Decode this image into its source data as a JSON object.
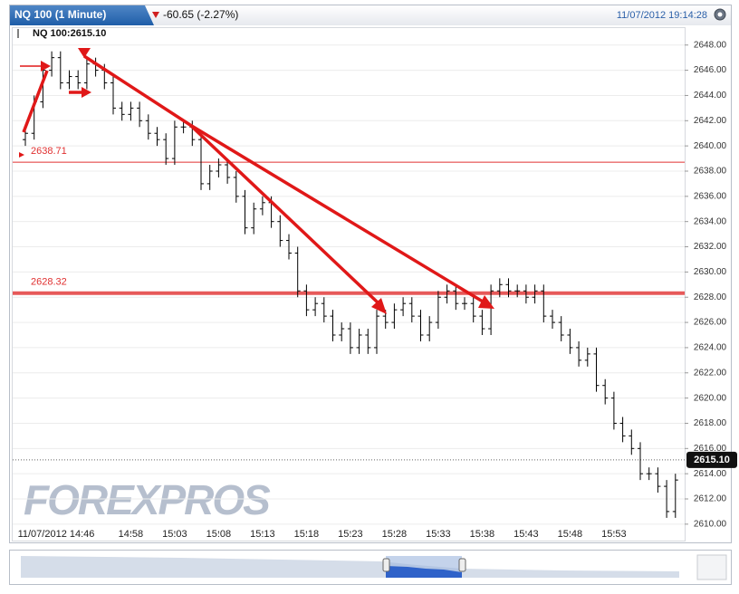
{
  "chart_data": {
    "type": "ohlc",
    "title": "NQ 100 (1 Minute)",
    "change": "-60.65 (-2.27%)",
    "timestamp": "11/07/2012 19:14:28",
    "quote_label": "NQ 100:2615.10",
    "watermark": "FOREXPROS",
    "color": "#000000",
    "categories": [
      "11/07/2012 14:46",
      null,
      null,
      null,
      null,
      null,
      null,
      null,
      null,
      null,
      null,
      null,
      "14:58",
      null,
      null,
      null,
      null,
      "15:03",
      null,
      null,
      null,
      null,
      "15:08",
      null,
      null,
      null,
      null,
      "15:13",
      null,
      null,
      null,
      null,
      "15:18",
      null,
      null,
      null,
      null,
      "15:23",
      null,
      null,
      null,
      null,
      "15:28",
      null,
      null,
      null,
      null,
      "15:33",
      null,
      null,
      null,
      null,
      "15:38",
      null,
      null,
      null,
      null,
      "15:43",
      null,
      null,
      null,
      null,
      "15:48",
      null,
      null,
      null,
      null,
      "15:53",
      null,
      null,
      null,
      null,
      null,
      null,
      null
    ],
    "open": [
      2640.5,
      2641.0,
      2643.5,
      2646.0,
      2647.0,
      2645.0,
      2645.5,
      2645.0,
      2646.5,
      2646.0,
      2645.0,
      2643.0,
      2642.5,
      2643.0,
      2642.0,
      2641.0,
      2640.5,
      2639.0,
      2641.5,
      2641.5,
      2640.5,
      2637.0,
      2638.0,
      2638.5,
      2637.5,
      2636.0,
      2633.5,
      2635.0,
      2635.5,
      2634.0,
      2632.5,
      2631.5,
      2628.5,
      2627.0,
      2627.5,
      2626.5,
      2625.0,
      2625.5,
      2624.0,
      2625.0,
      2624.0,
      2626.5,
      2626.0,
      2627.0,
      2627.5,
      2626.5,
      2625.0,
      2626.0,
      2628.0,
      2628.5,
      2627.5,
      2627.5,
      2626.5,
      2625.5,
      2628.5,
      2629.0,
      2628.5,
      2628.5,
      2628.0,
      2628.5,
      2626.5,
      2626.0,
      2625.0,
      2624.0,
      2623.0,
      2623.5,
      2621.0,
      2620.0,
      2618.0,
      2617.0,
      2616.0,
      2614.0,
      2614.0,
      2613.0,
      2611.0
    ],
    "high": [
      2641.5,
      2644,
      2646.5,
      2647.5,
      2647.5,
      2646,
      2646,
      2647,
      2647,
      2646.5,
      2645.5,
      2643.5,
      2643.5,
      2643.5,
      2642.5,
      2641.5,
      2641,
      2642,
      2642,
      2642,
      2641,
      2638.5,
      2639,
      2639,
      2638,
      2636.5,
      2635.5,
      2636,
      2636,
      2634.5,
      2633,
      2632,
      2629,
      2628,
      2628,
      2627,
      2626,
      2626,
      2625.5,
      2625.5,
      2627,
      2627,
      2627.5,
      2628,
      2628,
      2627,
      2626.5,
      2628.5,
      2629,
      2629,
      2628,
      2628,
      2627,
      2629,
      2629.5,
      2629.5,
      2629,
      2629,
      2629,
      2629,
      2627,
      2626.5,
      2625.5,
      2624.5,
      2624,
      2624,
      2621.5,
      2620.5,
      2618.5,
      2617.5,
      2616.5,
      2614.5,
      2614.5,
      2613.5,
      2614
    ],
    "low": [
      2640,
      2640.5,
      2643,
      2645.5,
      2644.5,
      2644.5,
      2644.5,
      2644.5,
      2645.5,
      2644.5,
      2642.5,
      2642,
      2642,
      2641.5,
      2640.5,
      2640,
      2638.5,
      2638.5,
      2641,
      2640,
      2636.5,
      2636.5,
      2637.5,
      2637,
      2635.5,
      2633,
      2633,
      2634.5,
      2633.5,
      2632,
      2631,
      2628,
      2626.5,
      2626.5,
      2626,
      2624.5,
      2624.5,
      2623.5,
      2623.5,
      2623.5,
      2623.5,
      2625.5,
      2625.5,
      2626.5,
      2626,
      2624.5,
      2624.5,
      2625.5,
      2627.5,
      2627,
      2627,
      2626,
      2625,
      2625,
      2628,
      2628,
      2628,
      2627.5,
      2627.5,
      2626,
      2625.5,
      2624.5,
      2623.5,
      2622.5,
      2622.5,
      2620.5,
      2619.5,
      2617.5,
      2616.5,
      2615.5,
      2613.5,
      2613.5,
      2612.5,
      2610.5,
      2610.5
    ],
    "close": [
      2641.0,
      2643.5,
      2646.0,
      2647.0,
      2645.0,
      2645.5,
      2645.0,
      2646.5,
      2646.0,
      2645.0,
      2643.0,
      2642.5,
      2643.0,
      2642.0,
      2641.0,
      2640.5,
      2639.0,
      2641.5,
      2641.5,
      2640.5,
      2637.0,
      2638.0,
      2638.5,
      2637.5,
      2636.0,
      2633.5,
      2635.0,
      2635.5,
      2634.0,
      2632.5,
      2631.5,
      2628.5,
      2627.0,
      2627.5,
      2626.5,
      2625.0,
      2625.5,
      2624.0,
      2625.0,
      2624.0,
      2626.5,
      2626.0,
      2627.0,
      2627.5,
      2626.5,
      2625.0,
      2626.0,
      2628.0,
      2628.5,
      2627.5,
      2627.5,
      2626.5,
      2625.5,
      2628.5,
      2629.0,
      2628.5,
      2628.5,
      2628.0,
      2628.5,
      2626.5,
      2626.0,
      2625.0,
      2624.0,
      2623.0,
      2623.5,
      2621.0,
      2620.0,
      2618.0,
      2617.0,
      2616.0,
      2614.0,
      2614.0,
      2613.0,
      2611.0,
      2613.5
    ],
    "levels": [
      2638.71,
      2628.32
    ],
    "level_color": "#e03030",
    "last_price": {
      "value": 2615.1,
      "label": "2615.10"
    },
    "ylim": [
      2609.2,
      2648.7
    ],
    "yticks": [
      {
        "value": 2610,
        "label": "2610.00"
      },
      {
        "value": 2612,
        "label": "2612.00"
      },
      {
        "value": 2614,
        "label": "2614.00"
      },
      {
        "value": 2616,
        "label": "2616.00"
      },
      {
        "value": 2618,
        "label": "2618.00"
      },
      {
        "value": 2620,
        "label": "2620.00"
      },
      {
        "value": 2622,
        "label": "2622.00"
      },
      {
        "value": 2624,
        "label": "2624.00"
      },
      {
        "value": 2626,
        "label": "2626.00"
      },
      {
        "value": 2628,
        "label": "2628.00"
      },
      {
        "value": 2630,
        "label": "2630.00"
      },
      {
        "value": 2632,
        "label": "2632.00"
      },
      {
        "value": 2634,
        "label": "2634.00"
      },
      {
        "value": 2636,
        "label": "2636.00"
      },
      {
        "value": 2638,
        "label": "2638.00"
      },
      {
        "value": 2640,
        "label": "2640.00"
      },
      {
        "value": 2642,
        "label": "2642.00"
      },
      {
        "value": 2644,
        "label": "2644.00"
      },
      {
        "value": 2646,
        "label": "2646.00"
      },
      {
        "value": 2648,
        "label": "2648.00"
      }
    ],
    "grid": true
  }
}
